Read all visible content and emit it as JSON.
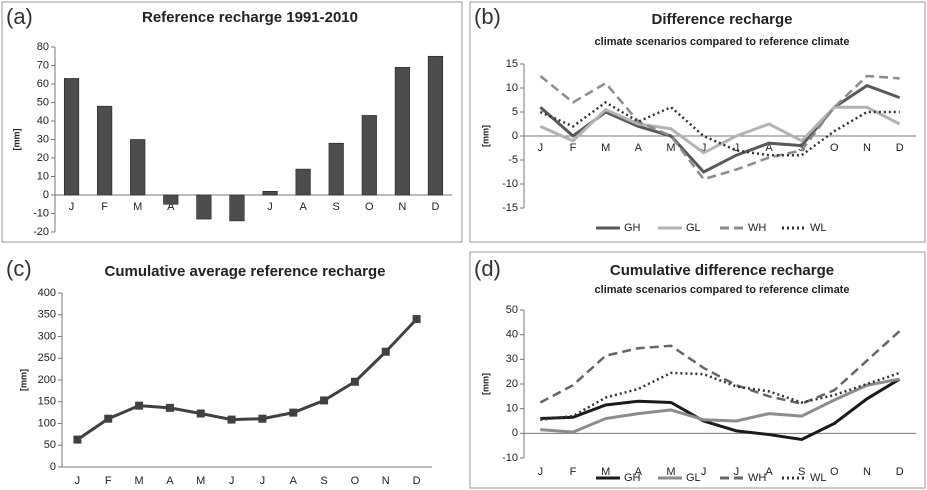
{
  "chart_data": [
    {
      "type": "bar",
      "panel_label": "(a)",
      "title": "Reference recharge 1991-2010",
      "y_label": "[mm]",
      "categories": [
        "J",
        "F",
        "M",
        "A",
        "M",
        "J",
        "J",
        "A",
        "S",
        "O",
        "N",
        "D"
      ],
      "values": [
        63,
        48,
        30,
        -5,
        -13,
        -14,
        2,
        14,
        28,
        43,
        69,
        75
      ],
      "color": "#4d4d4d",
      "ylim": [
        -20,
        80
      ],
      "yticks": [
        -20,
        -10,
        0,
        10,
        20,
        30,
        40,
        50,
        60,
        70,
        80
      ]
    },
    {
      "type": "line",
      "panel_label": "(b)",
      "title": "Difference recharge",
      "subtitle": "climate scenarios compared to reference climate",
      "y_label": "[mm]",
      "categories": [
        "J",
        "F",
        "M",
        "A",
        "M",
        "J",
        "J",
        "A",
        "S",
        "O",
        "N",
        "D"
      ],
      "series": [
        {
          "name": "GH",
          "color": "#595959",
          "line_style": "solid",
          "values": [
            6,
            0,
            5,
            2,
            0,
            -7.5,
            -4,
            -1.5,
            -2,
            6,
            10.5,
            8
          ]
        },
        {
          "name": "GL",
          "color": "#b3b3b3",
          "line_style": "solid",
          "values": [
            2,
            -1,
            5.5,
            2.5,
            1.5,
            -3.5,
            0,
            2.5,
            -1,
            6,
            6,
            2.5
          ]
        },
        {
          "name": "WH",
          "color": "#8c8c8c",
          "line_style": "dashed",
          "values": [
            12.5,
            7,
            11,
            3,
            0,
            -9,
            -7,
            -4.5,
            -3,
            6,
            12.5,
            12
          ]
        },
        {
          "name": "WL",
          "color": "#333333",
          "line_style": "dotted",
          "values": [
            5,
            2,
            7,
            3,
            6,
            0,
            -3,
            -4,
            -4,
            1,
            5,
            5
          ]
        }
      ],
      "ylim": [
        -15,
        15
      ],
      "yticks": [
        -15,
        -10,
        -5,
        0,
        5,
        10,
        15
      ]
    },
    {
      "type": "line",
      "panel_label": "(c)",
      "title": "Cumulative average reference recharge",
      "y_label": "[mm]",
      "categories": [
        "J",
        "F",
        "M",
        "A",
        "M",
        "J",
        "J",
        "A",
        "S",
        "O",
        "N",
        "D"
      ],
      "series": [
        {
          "color": "#404040",
          "line_style": "solid",
          "markers": true,
          "values": [
            63,
            111,
            141,
            136,
            123,
            109,
            111,
            125,
            153,
            196,
            265,
            340
          ]
        }
      ],
      "ylim": [
        0,
        400
      ],
      "yticks": [
        0,
        50,
        100,
        150,
        200,
        250,
        300,
        350,
        400
      ]
    },
    {
      "type": "line",
      "panel_label": "(d)",
      "title": "Cumulative difference recharge",
      "subtitle": "climate scenarios compared to reference climate",
      "y_label": "[mm]",
      "categories": [
        "J",
        "F",
        "M",
        "A",
        "M",
        "J",
        "J",
        "A",
        "S",
        "O",
        "N",
        "D"
      ],
      "series": [
        {
          "name": "GH",
          "color": "#1a1a1a",
          "line_style": "solid",
          "values": [
            6,
            6.5,
            11.5,
            13,
            12.5,
            5,
            1,
            -0.5,
            -2.5,
            4,
            14,
            22
          ]
        },
        {
          "name": "GL",
          "color": "#8c8c8c",
          "line_style": "solid",
          "values": [
            1.5,
            0.5,
            6,
            8,
            9.5,
            5.5,
            5,
            8,
            7,
            13.5,
            19.5,
            22
          ]
        },
        {
          "name": "WH",
          "color": "#666666",
          "line_style": "dashed",
          "values": [
            12.5,
            19.5,
            31.5,
            34.5,
            35.5,
            26.5,
            19.5,
            15,
            12,
            17.5,
            29.5,
            41.5
          ]
        },
        {
          "name": "WL",
          "color": "#333333",
          "line_style": "dotted",
          "values": [
            5.5,
            7,
            14.5,
            18,
            24.5,
            24,
            19,
            17,
            12.5,
            15.5,
            20,
            24.5
          ]
        }
      ],
      "ylim": [
        -10,
        50
      ],
      "yticks": [
        -10,
        0,
        10,
        20,
        30,
        40,
        50
      ]
    }
  ]
}
